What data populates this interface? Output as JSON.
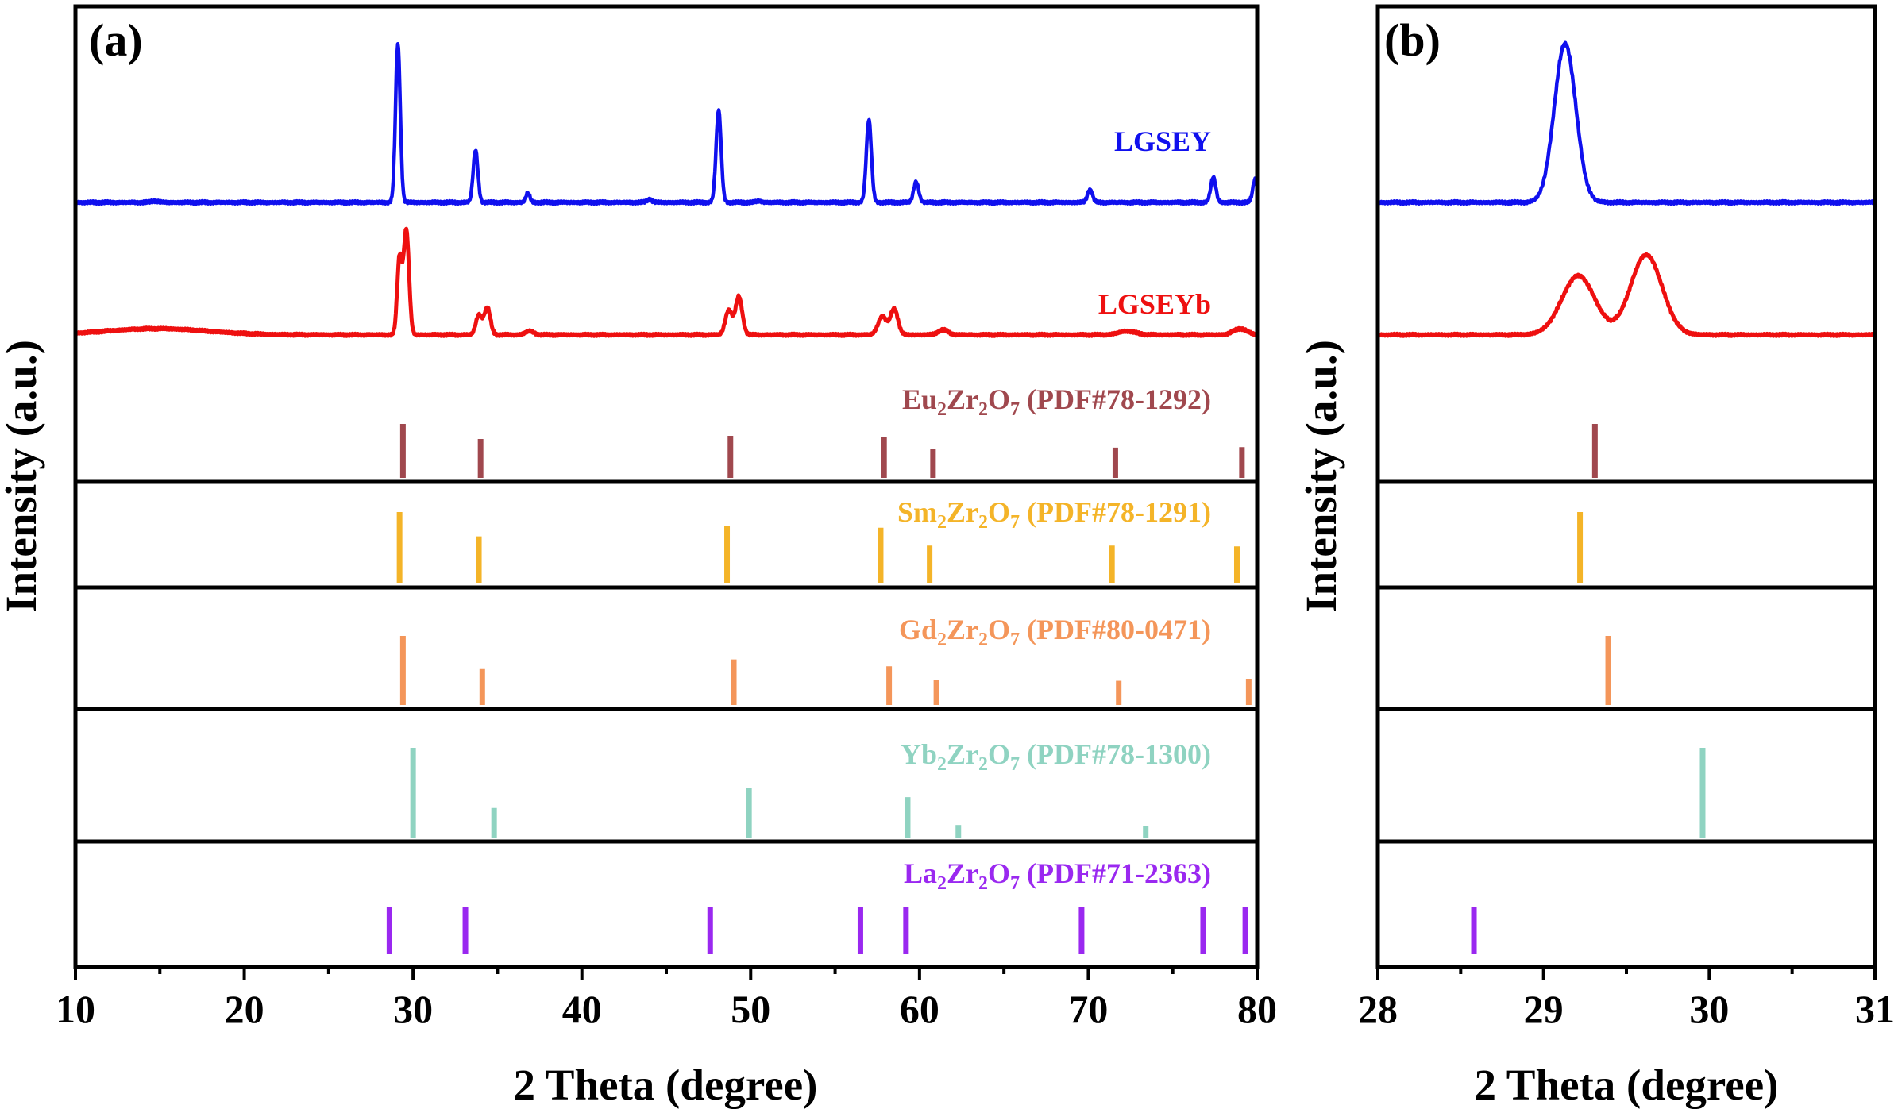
{
  "figure": {
    "panel_a_label": "(a)",
    "panel_b_label": "(b)",
    "xlabel": "2 Theta (degree)",
    "ylabel": "Intensity (a.u.)"
  },
  "colors": {
    "LGSEY": "#1010ee",
    "LGSEYb": "#ee1010",
    "Eu": "#a0484e",
    "Sm": "#f4b428",
    "Gd": "#f4965a",
    "Yb": "#8fd3c1",
    "La": "#9a28f0"
  },
  "chart_data": [
    {
      "panel": "(a)",
      "type": "line",
      "xlabel": "2 Theta (degree)",
      "ylabel": "Intensity (a.u.)",
      "xlim": [
        10,
        80
      ],
      "xticks": [
        "10",
        "20",
        "30",
        "40",
        "50",
        "60",
        "70",
        "80"
      ],
      "series": [
        {
          "name": "LGSEY",
          "kind": "pattern",
          "baseline": 0.05,
          "peaks": [
            [
              14.7,
              0.01,
              0.2
            ],
            [
              29.1,
              1.0,
              0.14
            ],
            [
              33.7,
              0.33,
              0.14
            ],
            [
              36.8,
              0.06,
              0.12
            ],
            [
              44.0,
              0.02,
              0.15
            ],
            [
              48.1,
              0.58,
              0.15
            ],
            [
              50.5,
              0.01,
              0.15
            ],
            [
              57.0,
              0.52,
              0.15
            ],
            [
              59.8,
              0.13,
              0.15
            ],
            [
              70.1,
              0.08,
              0.15
            ],
            [
              77.4,
              0.16,
              0.15
            ],
            [
              79.9,
              0.15,
              0.15
            ]
          ]
        },
        {
          "name": "LGSEYb",
          "kind": "pattern",
          "baseline": 0.15,
          "peaks": [
            [
              14.8,
              0.05,
              3.0
            ],
            [
              29.2,
              0.62,
              0.14
            ],
            [
              29.6,
              0.85,
              0.16
            ],
            [
              33.9,
              0.16,
              0.18
            ],
            [
              34.4,
              0.22,
              0.18
            ],
            [
              36.9,
              0.03,
              0.25
            ],
            [
              48.7,
              0.2,
              0.2
            ],
            [
              49.3,
              0.31,
              0.2
            ],
            [
              57.8,
              0.15,
              0.25
            ],
            [
              58.5,
              0.21,
              0.22
            ],
            [
              61.4,
              0.04,
              0.3
            ],
            [
              72.3,
              0.03,
              0.5
            ],
            [
              79.0,
              0.05,
              0.4
            ]
          ]
        },
        {
          "name": "Eu2Zr2O7 (PDF#78-1292)",
          "label_prefix": "Eu",
          "sub1": "2",
          "mid": "Zr",
          "sub2": "2",
          "mid2": "O",
          "sub3": "7",
          "suffix": " (PDF#78-1292)",
          "kind": "sticks",
          "peaks": [
            [
              29.4,
              1.0
            ],
            [
              34.0,
              0.72
            ],
            [
              48.8,
              0.78
            ],
            [
              57.9,
              0.75
            ],
            [
              60.8,
              0.54
            ],
            [
              71.6,
              0.56
            ],
            [
              79.1,
              0.57
            ]
          ]
        },
        {
          "name": "Sm2Zr2O7 (PDF#78-1291)",
          "label_prefix": "Sm",
          "sub1": "2",
          "mid": "Zr",
          "sub2": "2",
          "mid2": "O",
          "sub3": "7",
          "suffix": " (PDF#78-1291)",
          "kind": "sticks",
          "peaks": [
            [
              29.2,
              1.0
            ],
            [
              33.9,
              0.66
            ],
            [
              48.6,
              0.81
            ],
            [
              57.7,
              0.78
            ],
            [
              60.6,
              0.53
            ],
            [
              71.4,
              0.53
            ],
            [
              78.8,
              0.52
            ]
          ]
        },
        {
          "name": "Gd2Zr2O7 (PDF#80-0471)",
          "label_prefix": "Gd",
          "sub1": "2",
          "mid": "Zr",
          "sub2": "2",
          "mid2": "O",
          "sub3": "7",
          "suffix": " (PDF#80-0471)",
          "kind": "sticks",
          "peaks": [
            [
              29.4,
              1.0
            ],
            [
              34.1,
              0.52
            ],
            [
              49.0,
              0.66
            ],
            [
              58.2,
              0.56
            ],
            [
              61.0,
              0.36
            ],
            [
              71.8,
              0.35
            ],
            [
              79.5,
              0.38
            ]
          ]
        },
        {
          "name": "Yb2Zr2O7 (PDF#78-1300)",
          "label_prefix": "Yb",
          "sub1": "2",
          "mid": "Zr",
          "sub2": "2",
          "mid2": "O",
          "sub3": "7",
          "suffix": " (PDF#78-1300)",
          "kind": "sticks",
          "peaks": [
            [
              30.0,
              1.0
            ],
            [
              34.8,
              0.33
            ],
            [
              49.9,
              0.55
            ],
            [
              59.3,
              0.45
            ],
            [
              62.3,
              0.14
            ],
            [
              73.4,
              0.13
            ]
          ]
        },
        {
          "name": "La2Zr2O7 (PDF#71-2363)",
          "label_prefix": "La",
          "sub1": "2",
          "mid": "Zr",
          "sub2": "2",
          "mid2": "O",
          "sub3": "7",
          "suffix": " (PDF#71-2363)",
          "kind": "sticks",
          "peaks": [
            [
              28.6,
              1.0
            ],
            [
              33.1,
              1.0
            ],
            [
              47.6,
              1.0
            ],
            [
              56.5,
              1.0
            ],
            [
              59.2,
              1.0
            ],
            [
              69.6,
              1.0
            ],
            [
              76.8,
              1.0
            ],
            [
              79.3,
              1.0
            ]
          ]
        }
      ]
    },
    {
      "panel": "(b)",
      "type": "line",
      "xlabel": "2 Theta (degree)",
      "ylabel": "Intensity (a.u.)",
      "xlim": [
        28,
        31
      ],
      "xticks": [
        "28",
        "29",
        "30",
        "31"
      ],
      "series": [
        {
          "name": "LGSEY",
          "kind": "pattern",
          "baseline": 0.05,
          "peaks": [
            [
              29.13,
              1.0,
              0.065
            ]
          ]
        },
        {
          "name": "LGSEYb",
          "kind": "pattern",
          "baseline": 0.15,
          "peaks": [
            [
              29.21,
              0.48,
              0.1
            ],
            [
              29.62,
              0.65,
              0.095
            ]
          ]
        },
        {
          "name": "Eu2Zr2O7 (PDF#78-1292)",
          "kind": "sticks",
          "peaks": [
            [
              29.31,
              1.0
            ]
          ]
        },
        {
          "name": "Sm2Zr2O7 (PDF#78-1291)",
          "kind": "sticks",
          "peaks": [
            [
              29.22,
              1.0
            ]
          ]
        },
        {
          "name": "Gd2Zr2O7 (PDF#80-0471)",
          "kind": "sticks",
          "peaks": [
            [
              29.39,
              1.0
            ]
          ]
        },
        {
          "name": "Yb2Zr2O7 (PDF#78-1300)",
          "kind": "sticks",
          "peaks": [
            [
              29.96,
              1.0
            ]
          ]
        },
        {
          "name": "La2Zr2O7 (PDF#71-2363)",
          "kind": "sticks",
          "peaks": [
            [
              28.58,
              1.0
            ]
          ]
        }
      ]
    }
  ]
}
